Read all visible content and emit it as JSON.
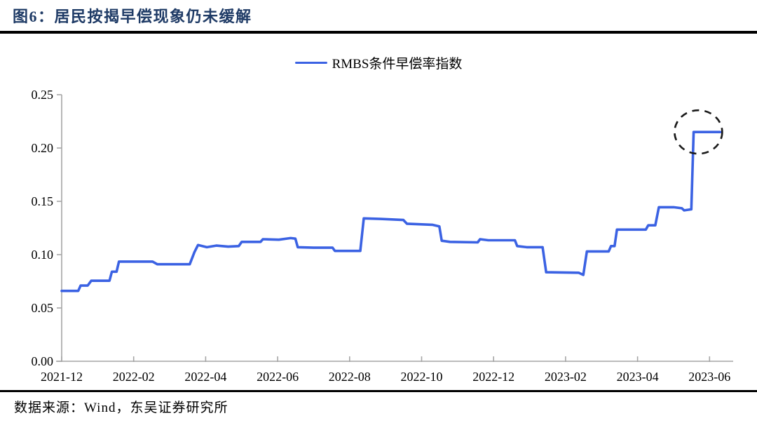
{
  "header": {
    "title": "图6：居民按揭早偿现象仍未缓解"
  },
  "footer": {
    "source": "数据来源：Wind，东吴证券研究所"
  },
  "colors": {
    "series_blue": "#3b62e3",
    "title_navy": "#1f3b66",
    "axis_gray": "#a6a6a6",
    "tick_text": "#000000",
    "annotation_black": "#1a1a1a",
    "divider_black": "#000000"
  },
  "chart_data": {
    "type": "line",
    "title": "图6：居民按揭早偿现象仍未缓解",
    "legend": [
      "RMBS条件早偿率指数"
    ],
    "legend_position": "top-center",
    "grid": false,
    "xlabel": "",
    "ylabel": "",
    "ylim": [
      0,
      0.25
    ],
    "x_range": [
      "2021-12-01",
      "2023-06-30"
    ],
    "x_tick_labels": [
      "2021-12",
      "2022-02",
      "2022-04",
      "2022-06",
      "2022-08",
      "2022-10",
      "2022-12",
      "2023-02",
      "2023-04",
      "2023-06"
    ],
    "y_tick_labels": [
      "0.00",
      "0.05",
      "0.10",
      "0.15",
      "0.20",
      "0.25"
    ],
    "y_tick_values": [
      0,
      0.05,
      0.1,
      0.15,
      0.2,
      0.25
    ],
    "series": [
      {
        "name": "RMBS条件早偿率指数",
        "points": [
          [
            "2021-12-01",
            0.066
          ],
          [
            "2021-12-15",
            0.066
          ],
          [
            "2021-12-17",
            0.071
          ],
          [
            "2021-12-23",
            0.071
          ],
          [
            "2021-12-26",
            0.0755
          ],
          [
            "2022-01-11",
            0.0755
          ],
          [
            "2022-01-13",
            0.084
          ],
          [
            "2022-01-17",
            0.084
          ],
          [
            "2022-01-19",
            0.0935
          ],
          [
            "2022-02-17",
            0.0935
          ],
          [
            "2022-02-21",
            0.091
          ],
          [
            "2022-03-18",
            0.091
          ],
          [
            "2022-03-22",
            0.1025
          ],
          [
            "2022-03-25",
            0.109
          ],
          [
            "2022-04-02",
            0.107
          ],
          [
            "2022-04-10",
            0.1085
          ],
          [
            "2022-04-20",
            0.1075
          ],
          [
            "2022-04-29",
            0.108
          ],
          [
            "2022-05-01",
            0.112
          ],
          [
            "2022-05-17",
            0.112
          ],
          [
            "2022-05-19",
            0.1145
          ],
          [
            "2022-06-02",
            0.114
          ],
          [
            "2022-06-12",
            0.1155
          ],
          [
            "2022-06-16",
            0.115
          ],
          [
            "2022-06-18",
            0.107
          ],
          [
            "2022-07-01",
            0.1065
          ],
          [
            "2022-07-17",
            0.1065
          ],
          [
            "2022-07-19",
            0.1035
          ],
          [
            "2022-08-10",
            0.1035
          ],
          [
            "2022-08-13",
            0.134
          ],
          [
            "2022-08-27",
            0.1335
          ],
          [
            "2022-09-16",
            0.1325
          ],
          [
            "2022-09-19",
            0.129
          ],
          [
            "2022-10-10",
            0.128
          ],
          [
            "2022-10-16",
            0.1265
          ],
          [
            "2022-10-18",
            0.113
          ],
          [
            "2022-10-25",
            0.112
          ],
          [
            "2022-11-18",
            0.1115
          ],
          [
            "2022-11-20",
            0.1145
          ],
          [
            "2022-11-27",
            0.1135
          ],
          [
            "2022-12-19",
            0.1135
          ],
          [
            "2022-12-21",
            0.108
          ],
          [
            "2022-12-29",
            0.107
          ],
          [
            "2023-01-12",
            0.107
          ],
          [
            "2023-01-15",
            0.0835
          ],
          [
            "2023-02-12",
            0.083
          ],
          [
            "2023-02-16",
            0.081
          ],
          [
            "2023-02-19",
            0.103
          ],
          [
            "2023-03-07",
            0.103
          ],
          [
            "2023-03-09",
            0.108
          ],
          [
            "2023-03-12",
            0.108
          ],
          [
            "2023-03-14",
            0.1235
          ],
          [
            "2023-04-08",
            0.1235
          ],
          [
            "2023-04-10",
            0.1275
          ],
          [
            "2023-04-16",
            0.1275
          ],
          [
            "2023-04-19",
            0.1445
          ],
          [
            "2023-05-01",
            0.1445
          ],
          [
            "2023-05-08",
            0.1435
          ],
          [
            "2023-05-10",
            0.1415
          ],
          [
            "2023-05-16",
            0.1425
          ],
          [
            "2023-05-18",
            0.215
          ],
          [
            "2023-06-10",
            0.215
          ]
        ]
      }
    ],
    "annotation": {
      "type": "dashed-circle",
      "date": "2023-05-22",
      "value": 0.215
    }
  }
}
